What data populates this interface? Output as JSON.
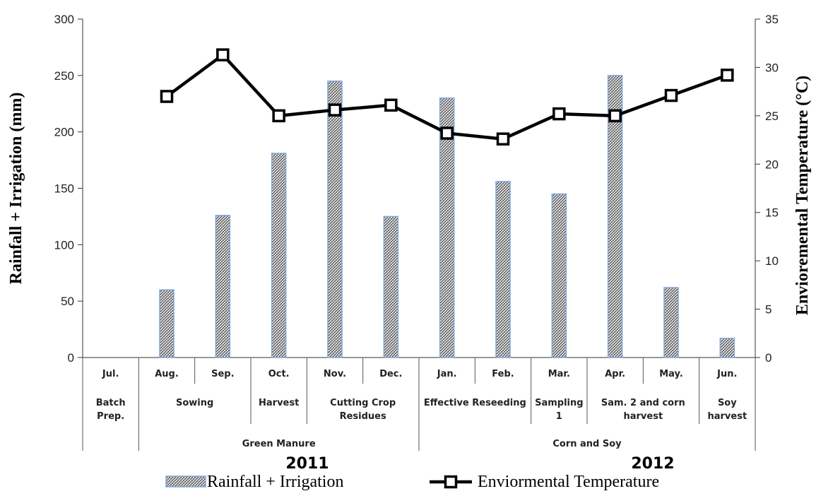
{
  "chart_data": {
    "type": "bar+line",
    "categories": [
      "Jul.",
      "Aug.",
      "Sep.",
      "Oct.",
      "Nov.",
      "Dec.",
      "Jan.",
      "Feb.",
      "Mar.",
      "Apr.",
      "May.",
      "Jun."
    ],
    "series": [
      {
        "name": "Rainfall + Irrigation",
        "type": "bar",
        "axis": "left",
        "values": [
          null,
          60,
          126,
          181,
          245,
          125,
          230,
          156,
          145,
          250,
          62,
          17
        ]
      },
      {
        "name": "Enviormental Temperature",
        "type": "line",
        "axis": "right",
        "values": [
          null,
          27,
          31.3,
          25,
          25.6,
          26.1,
          23.2,
          22.6,
          25.2,
          25,
          27.1,
          29.2
        ]
      }
    ],
    "ylabel": "Rainfall + Irrigation (mm)",
    "y2label": "Envioremental Temperature (°C)",
    "ylim": [
      0,
      300
    ],
    "y2lim": [
      0,
      35
    ],
    "yticks": [
      "0",
      "50",
      "100",
      "150",
      "200",
      "250",
      "300"
    ],
    "y2ticks": [
      "0",
      "5",
      "10",
      "15",
      "20",
      "25",
      "30",
      "35"
    ],
    "stages": [
      {
        "label": [
          "Batch",
          "Prep."
        ],
        "months": [
          0,
          0
        ]
      },
      {
        "label": [
          "Sowing"
        ],
        "months": [
          1,
          2
        ]
      },
      {
        "label": [
          "Harvest"
        ],
        "months": [
          3,
          3
        ]
      },
      {
        "label": [
          "Cutting Crop",
          "Residues"
        ],
        "months": [
          4,
          5
        ]
      },
      {
        "label": [
          "Effective Reseeding"
        ],
        "months": [
          6,
          7
        ]
      },
      {
        "label": [
          "Sampling",
          "1"
        ],
        "months": [
          8,
          8
        ]
      },
      {
        "label": [
          "Sam. 2 and corn",
          "harvest"
        ],
        "months": [
          9,
          10
        ]
      },
      {
        "label": [
          "Soy",
          "harvest"
        ],
        "months": [
          11,
          11
        ]
      }
    ],
    "groups": [
      {
        "label": "Green Manure",
        "months": [
          1,
          5
        ]
      },
      {
        "label": "Corn and Soy",
        "months": [
          6,
          11
        ]
      }
    ],
    "years": [
      {
        "label": "2011",
        "months": [
          0,
          5
        ]
      },
      {
        "label": "2012",
        "months": [
          6,
          11
        ]
      }
    ],
    "legend_position": "bottom",
    "grid": false,
    "colors": {
      "bar_fill": "#ffffff",
      "bar_hatch": "#555555",
      "bar_border": "#7fa7d8",
      "line": "#000000",
      "marker_fill": "#ffffff"
    }
  }
}
